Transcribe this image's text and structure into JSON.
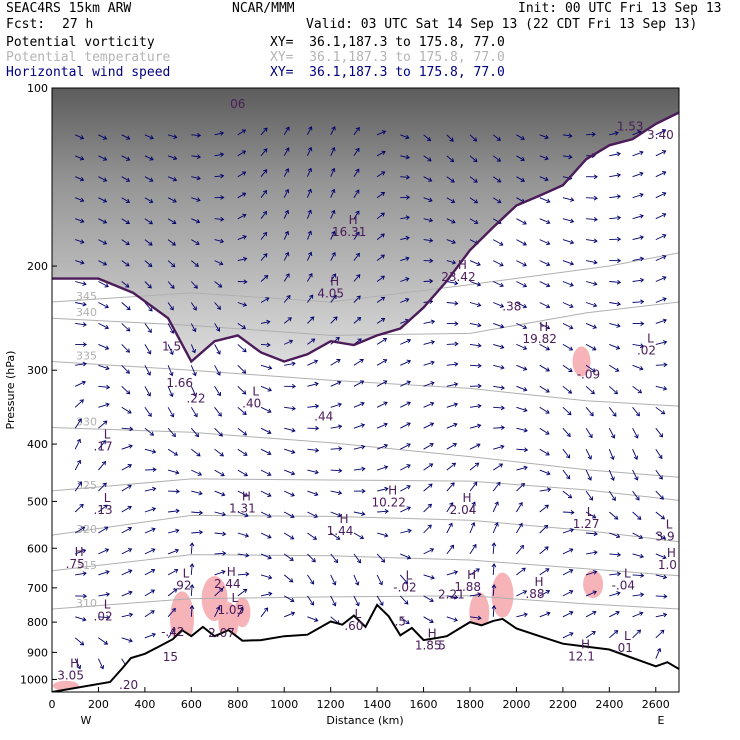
{
  "header": {
    "model": "SEAC4RS 15km ARW",
    "org": "NCAR/MMM",
    "init": "Init: 00 UTC Fri 13 Sep 13",
    "fcst_label": "Fcst:",
    "fcst_value": "27 h",
    "valid": "Valid: 03 UTC Sat 14 Sep 13 (22 CDT Fri 13 Sep 13)"
  },
  "fields": [
    {
      "name": "Potential vorticity",
      "xy": "XY=  36.1,187.3 to 175.8, 77.0",
      "color": "#000000"
    },
    {
      "name": "Potential temperature",
      "xy": "XY=  36.1,187.3 to 175.8, 77.0",
      "color": "#b4b4b4"
    },
    {
      "name": "Horizontal wind speed",
      "xy": "XY=  36.1,187.3 to 175.8, 77.0",
      "color": "#000080"
    }
  ],
  "colors": {
    "pv_contour": "#4b1b5a",
    "theta_contour": "#b0b0b0",
    "wind_vector": "#00006e",
    "negative_pv_fill": "#f6b3b8",
    "stratosphere_shade": "#6a6a6a",
    "terrain_line": "#000000"
  },
  "chart_data": {
    "type": "cross-section",
    "xlabel": "Distance (km)",
    "ylabel": "Pressure (hPa)",
    "x_ticks": [
      "0",
      "200",
      "400",
      "600",
      "800",
      "1000",
      "1200",
      "1400",
      "1600",
      "1800",
      "2000",
      "2200",
      "2400",
      "2600"
    ],
    "y_ticks": [
      "100",
      "200",
      "300",
      "400",
      "500",
      "600",
      "700",
      "800",
      "900",
      "1000"
    ],
    "xlim": [
      0,
      2700
    ],
    "ylim": [
      1050,
      100
    ],
    "y_scale": "log-pressure",
    "west_label": "W",
    "east_label": "E",
    "terrain_surface": [
      {
        "x": 0,
        "p": 1050
      },
      {
        "x": 250,
        "p": 1010
      },
      {
        "x": 300,
        "p": 960
      },
      {
        "x": 340,
        "p": 920
      },
      {
        "x": 400,
        "p": 905
      },
      {
        "x": 460,
        "p": 880
      },
      {
        "x": 520,
        "p": 855
      },
      {
        "x": 560,
        "p": 825
      },
      {
        "x": 600,
        "p": 845
      },
      {
        "x": 650,
        "p": 815
      },
      {
        "x": 700,
        "p": 845
      },
      {
        "x": 760,
        "p": 825
      },
      {
        "x": 820,
        "p": 860
      },
      {
        "x": 900,
        "p": 858
      },
      {
        "x": 1000,
        "p": 845
      },
      {
        "x": 1100,
        "p": 840
      },
      {
        "x": 1200,
        "p": 798
      },
      {
        "x": 1250,
        "p": 808
      },
      {
        "x": 1300,
        "p": 780
      },
      {
        "x": 1350,
        "p": 815
      },
      {
        "x": 1400,
        "p": 748
      },
      {
        "x": 1450,
        "p": 782
      },
      {
        "x": 1500,
        "p": 842
      },
      {
        "x": 1550,
        "p": 818
      },
      {
        "x": 1600,
        "p": 858
      },
      {
        "x": 1650,
        "p": 852
      },
      {
        "x": 1700,
        "p": 845
      },
      {
        "x": 1750,
        "p": 822
      },
      {
        "x": 1800,
        "p": 800
      },
      {
        "x": 1850,
        "p": 810
      },
      {
        "x": 1900,
        "p": 796
      },
      {
        "x": 1940,
        "p": 790
      },
      {
        "x": 2000,
        "p": 820
      },
      {
        "x": 2100,
        "p": 845
      },
      {
        "x": 2200,
        "p": 870
      },
      {
        "x": 2300,
        "p": 880
      },
      {
        "x": 2400,
        "p": 890
      },
      {
        "x": 2500,
        "p": 920
      },
      {
        "x": 2600,
        "p": 950
      },
      {
        "x": 2650,
        "p": 935
      },
      {
        "x": 2700,
        "p": 960
      }
    ],
    "dynamic_tropopause_2pvu": [
      {
        "x": 0,
        "p": 210
      },
      {
        "x": 200,
        "p": 210
      },
      {
        "x": 350,
        "p": 222
      },
      {
        "x": 500,
        "p": 245
      },
      {
        "x": 600,
        "p": 290
      },
      {
        "x": 700,
        "p": 268
      },
      {
        "x": 800,
        "p": 262
      },
      {
        "x": 900,
        "p": 280
      },
      {
        "x": 1000,
        "p": 290
      },
      {
        "x": 1100,
        "p": 282
      },
      {
        "x": 1200,
        "p": 268
      },
      {
        "x": 1300,
        "p": 272
      },
      {
        "x": 1400,
        "p": 262
      },
      {
        "x": 1500,
        "p": 255
      },
      {
        "x": 1600,
        "p": 235
      },
      {
        "x": 1700,
        "p": 212
      },
      {
        "x": 1800,
        "p": 188
      },
      {
        "x": 1900,
        "p": 172
      },
      {
        "x": 2000,
        "p": 158
      },
      {
        "x": 2100,
        "p": 152
      },
      {
        "x": 2200,
        "p": 146
      },
      {
        "x": 2300,
        "p": 132
      },
      {
        "x": 2400,
        "p": 125
      },
      {
        "x": 2500,
        "p": 122
      },
      {
        "x": 2600,
        "p": 115
      },
      {
        "x": 2700,
        "p": 110
      }
    ],
    "isentropes": [
      {
        "label": "345",
        "points": [
          {
            "x": 0,
            "p": 230
          },
          {
            "x": 600,
            "p": 222
          },
          {
            "x": 1200,
            "p": 230
          },
          {
            "x": 1800,
            "p": 215
          },
          {
            "x": 2400,
            "p": 200
          },
          {
            "x": 2700,
            "p": 190
          }
        ]
      },
      {
        "label": "340",
        "points": [
          {
            "x": 0,
            "p": 245
          },
          {
            "x": 600,
            "p": 252
          },
          {
            "x": 1200,
            "p": 262
          },
          {
            "x": 1800,
            "p": 260
          },
          {
            "x": 2300,
            "p": 240
          },
          {
            "x": 2700,
            "p": 230
          }
        ]
      },
      {
        "label": "335",
        "points": [
          {
            "x": 0,
            "p": 290
          },
          {
            "x": 600,
            "p": 300
          },
          {
            "x": 1200,
            "p": 312
          },
          {
            "x": 1800,
            "p": 322
          },
          {
            "x": 2300,
            "p": 338
          },
          {
            "x": 2700,
            "p": 345
          }
        ]
      },
      {
        "label": "330",
        "points": [
          {
            "x": 0,
            "p": 375
          },
          {
            "x": 600,
            "p": 382
          },
          {
            "x": 1200,
            "p": 398
          },
          {
            "x": 1800,
            "p": 420
          },
          {
            "x": 2300,
            "p": 442
          },
          {
            "x": 2700,
            "p": 455
          }
        ]
      },
      {
        "label": "325",
        "points": [
          {
            "x": 0,
            "p": 480
          },
          {
            "x": 600,
            "p": 458
          },
          {
            "x": 1200,
            "p": 460
          },
          {
            "x": 1800,
            "p": 462
          },
          {
            "x": 2300,
            "p": 478
          },
          {
            "x": 2700,
            "p": 498
          }
        ]
      },
      {
        "label": "320",
        "points": [
          {
            "x": 0,
            "p": 570
          },
          {
            "x": 600,
            "p": 528
          },
          {
            "x": 1200,
            "p": 530
          },
          {
            "x": 1800,
            "p": 538
          },
          {
            "x": 2300,
            "p": 560
          },
          {
            "x": 2700,
            "p": 585
          }
        ]
      },
      {
        "label": "315",
        "points": [
          {
            "x": 0,
            "p": 655
          },
          {
            "x": 600,
            "p": 615
          },
          {
            "x": 1200,
            "p": 618
          },
          {
            "x": 1800,
            "p": 628
          },
          {
            "x": 2300,
            "p": 650
          },
          {
            "x": 2700,
            "p": 668
          }
        ]
      },
      {
        "label": "310",
        "points": [
          {
            "x": 0,
            "p": 760
          },
          {
            "x": 600,
            "p": 730
          },
          {
            "x": 1200,
            "p": 725
          },
          {
            "x": 1800,
            "p": 722
          },
          {
            "x": 2300,
            "p": 745
          },
          {
            "x": 2700,
            "p": 760
          }
        ]
      }
    ],
    "extrema_labels": [
      {
        "mark": "",
        "value": "06",
        "x": 800,
        "p": 108
      },
      {
        "mark": "",
        "value": "1.53",
        "x": 2490,
        "p": 118
      },
      {
        "mark": "",
        "value": "3.40",
        "x": 2620,
        "p": 122
      },
      {
        "mark": "H",
        "value": "16.31",
        "x": 1280,
        "p": 178
      },
      {
        "mark": "H",
        "value": "4.05",
        "x": 1200,
        "p": 226
      },
      {
        "mark": "H",
        "value": "23.42",
        "x": 1750,
        "p": 212
      },
      {
        "mark": "",
        "value": ".38",
        "x": 1980,
        "p": 238
      },
      {
        "mark": "H",
        "value": "19.82",
        "x": 2100,
        "p": 270
      },
      {
        "mark": "",
        "value": "-.09",
        "x": 2310,
        "p": 310
      },
      {
        "mark": "L",
        "value": ".02",
        "x": 2560,
        "p": 282
      },
      {
        "mark": "",
        "value": "1.5",
        "x": 515,
        "p": 278
      },
      {
        "mark": "",
        "value": "1.66",
        "x": 550,
        "p": 320
      },
      {
        "mark": "",
        "value": ".22",
        "x": 620,
        "p": 340
      },
      {
        "mark": "L",
        "value": ".40",
        "x": 860,
        "p": 347
      },
      {
        "mark": "",
        "value": ".44",
        "x": 1170,
        "p": 365
      },
      {
        "mark": "L",
        "value": ".17",
        "x": 220,
        "p": 410
      },
      {
        "mark": "L",
        "value": ".13",
        "x": 220,
        "p": 525
      },
      {
        "mark": "H",
        "value": "1.31",
        "x": 820,
        "p": 522
      },
      {
        "mark": "H",
        "value": "1.44",
        "x": 1240,
        "p": 570
      },
      {
        "mark": "H",
        "value": "10.22",
        "x": 1450,
        "p": 510
      },
      {
        "mark": "H",
        "value": "2.04",
        "x": 1770,
        "p": 525
      },
      {
        "mark": "L",
        "value": "1.27",
        "x": 2300,
        "p": 555
      },
      {
        "mark": "L",
        "value": "3.9",
        "x": 2640,
        "p": 582
      },
      {
        "mark": "H",
        "value": ".75",
        "x": 100,
        "p": 648
      },
      {
        "mark": "H",
        "value": "1.0",
        "x": 2650,
        "p": 650
      },
      {
        "mark": "L",
        "value": ".92",
        "x": 560,
        "p": 705
      },
      {
        "mark": "H",
        "value": "2.44",
        "x": 755,
        "p": 700
      },
      {
        "mark": "L",
        "value": "-.02",
        "x": 1520,
        "p": 710
      },
      {
        "mark": "H",
        "value": "1.88",
        "x": 1790,
        "p": 708
      },
      {
        "mark": "",
        "value": "2.21",
        "x": 1720,
        "p": 730
      },
      {
        "mark": "H",
        "value": ".88",
        "x": 2080,
        "p": 728
      },
      {
        "mark": "L",
        "value": "-.04",
        "x": 2460,
        "p": 705
      },
      {
        "mark": "L",
        "value": "1.05",
        "x": 770,
        "p": 775
      },
      {
        "mark": "L",
        "value": ".02",
        "x": 220,
        "p": 795
      },
      {
        "mark": "L",
        "value": ".60",
        "x": 1300,
        "p": 825
      },
      {
        "mark": "",
        "value": ".5",
        "x": 1500,
        "p": 810
      },
      {
        "mark": "",
        "value": "-.42",
        "x": 520,
        "p": 845
      },
      {
        "mark": "",
        "value": "2.07",
        "x": 730,
        "p": 848
      },
      {
        "mark": "H",
        "value": "1.85",
        "x": 1620,
        "p": 890
      },
      {
        "mark": "",
        "value": "5",
        "x": 1680,
        "p": 890
      },
      {
        "mark": "L",
        "value": ".01",
        "x": 2460,
        "p": 898
      },
      {
        "mark": "H",
        "value": "12.1",
        "x": 2280,
        "p": 928
      },
      {
        "mark": "",
        "value": "15",
        "x": 510,
        "p": 930
      },
      {
        "mark": "H",
        "value": "3.05",
        "x": 80,
        "p": 1000
      },
      {
        "mark": "",
        "value": ".20",
        "x": 330,
        "p": 1038
      }
    ]
  }
}
